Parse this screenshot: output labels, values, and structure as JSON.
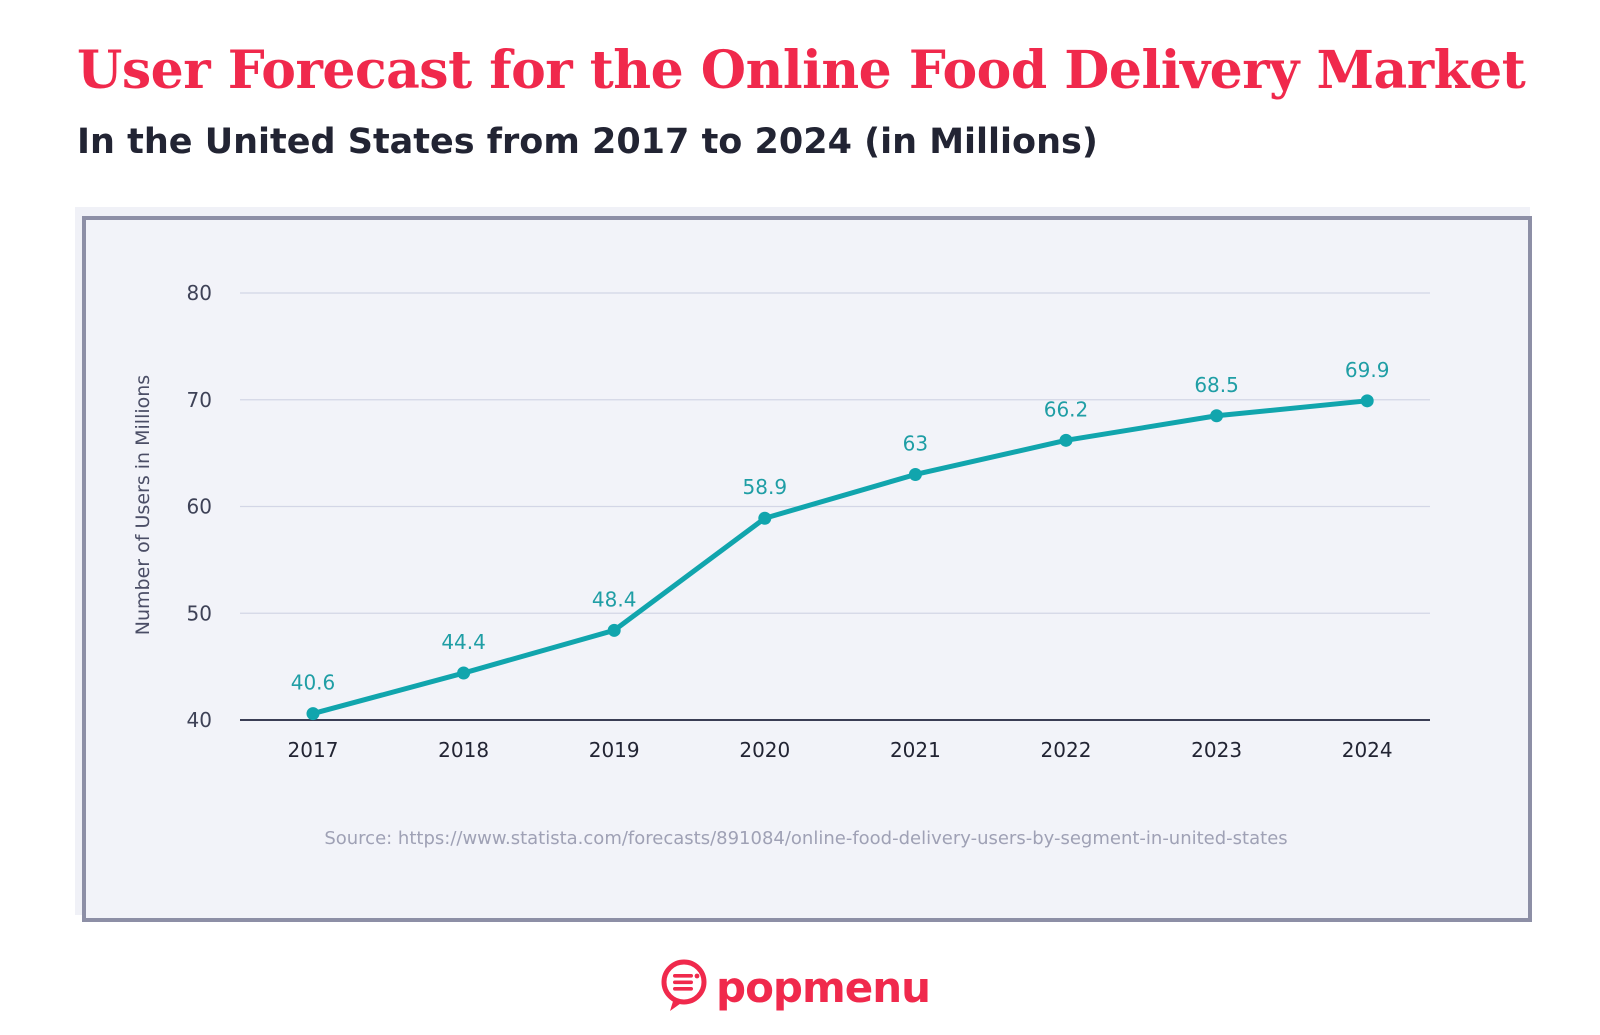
{
  "title": "User Forecast for the Online Food Delivery Market",
  "subtitle": "In the United States from 2017 to 2024 (in Millions)",
  "source": "Source: https://www.statista.com/forecasts/891084/online-food-delivery-users-by-segment-in-united-states",
  "brand": {
    "name": "popmenu",
    "icon": "chat-bubble-menu-icon",
    "color": "#f0294c"
  },
  "chart_data": {
    "type": "line",
    "title": "User Forecast for the Online Food Delivery Market",
    "subtitle": "In the United States from 2017 to 2024 (in Millions)",
    "xlabel": "",
    "ylabel": "Number of Users in Millions",
    "categories": [
      "2017",
      "2018",
      "2019",
      "2020",
      "2021",
      "2022",
      "2023",
      "2024"
    ],
    "values": [
      40.6,
      44.4,
      48.4,
      58.9,
      63,
      66.2,
      68.5,
      69.9
    ],
    "data_labels": [
      "40.6",
      "44.4",
      "48.4",
      "58.9",
      "63",
      "66.2",
      "68.5",
      "69.9"
    ],
    "ylim": [
      40,
      80
    ],
    "yticks": [
      40,
      50,
      60,
      70,
      80
    ],
    "grid": true,
    "legend": "none",
    "line_color": "#11a5ad",
    "title_color": "#f0294c"
  }
}
